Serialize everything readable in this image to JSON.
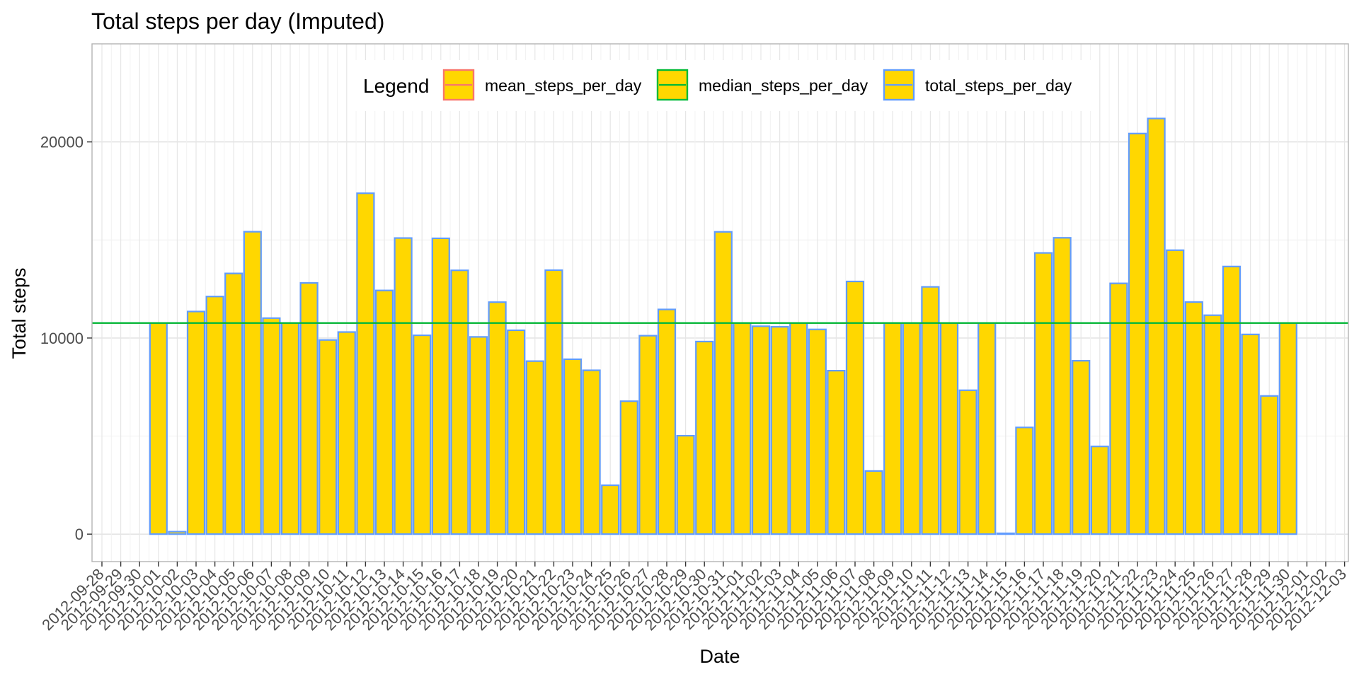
{
  "chart_data": {
    "type": "bar",
    "title": "Total steps per day (Imputed)",
    "xlabel": "Date",
    "ylabel": "Total steps",
    "ylim": [
      -1400,
      25000
    ],
    "y_ticks": [
      0,
      10000,
      20000
    ],
    "y_tick_labels": [
      "0",
      "10000",
      "20000"
    ],
    "x_tick_labels": [
      "2012-09-28",
      "2012-09-29",
      "2012-09-30",
      "2012-10-01",
      "2012-10-02",
      "2012-10-03",
      "2012-10-04",
      "2012-10-05",
      "2012-10-06",
      "2012-10-07",
      "2012-10-08",
      "2012-10-09",
      "2012-10-10",
      "2012-10-11",
      "2012-10-12",
      "2012-10-13",
      "2012-10-14",
      "2012-10-15",
      "2012-10-16",
      "2012-10-17",
      "2012-10-18",
      "2012-10-19",
      "2012-10-20",
      "2012-10-21",
      "2012-10-22",
      "2012-10-23",
      "2012-10-24",
      "2012-10-25",
      "2012-10-26",
      "2012-10-27",
      "2012-10-28",
      "2012-10-29",
      "2012-10-30",
      "2012-10-31",
      "2012-11-01",
      "2012-11-02",
      "2012-11-03",
      "2012-11-04",
      "2012-11-05",
      "2012-11-06",
      "2012-11-07",
      "2012-11-08",
      "2012-11-09",
      "2012-11-10",
      "2012-11-11",
      "2012-11-12",
      "2012-11-13",
      "2012-11-14",
      "2012-11-15",
      "2012-11-16",
      "2012-11-17",
      "2012-11-18",
      "2012-11-19",
      "2012-11-20",
      "2012-11-21",
      "2012-11-22",
      "2012-11-23",
      "2012-11-24",
      "2012-11-25",
      "2012-11-26",
      "2012-11-27",
      "2012-11-28",
      "2012-11-29",
      "2012-11-30",
      "2012-12-01",
      "2012-12-02",
      "2012-12-03"
    ],
    "grid": true,
    "legend": {
      "title": "Legend",
      "position": "top",
      "items": [
        {
          "label": "mean_steps_per_day",
          "color": "#F8766D"
        },
        {
          "label": "median_steps_per_day",
          "color": "#00BA38"
        },
        {
          "label": "total_steps_per_day",
          "color": "#619CFF"
        }
      ]
    },
    "bar_fill": "#FFD700",
    "bar_outline": "#619CFF",
    "median_line": {
      "value": 10766.19,
      "color": "#00BA38"
    },
    "mean_line": {
      "value": 10766.19,
      "color": "#F8766D"
    },
    "series": [
      {
        "name": "total_steps_per_day",
        "x": [
          "2012-10-01",
          "2012-10-02",
          "2012-10-03",
          "2012-10-04",
          "2012-10-05",
          "2012-10-06",
          "2012-10-07",
          "2012-10-08",
          "2012-10-09",
          "2012-10-10",
          "2012-10-11",
          "2012-10-12",
          "2012-10-13",
          "2012-10-14",
          "2012-10-15",
          "2012-10-16",
          "2012-10-17",
          "2012-10-18",
          "2012-10-19",
          "2012-10-20",
          "2012-10-21",
          "2012-10-22",
          "2012-10-23",
          "2012-10-24",
          "2012-10-25",
          "2012-10-26",
          "2012-10-27",
          "2012-10-28",
          "2012-10-29",
          "2012-10-30",
          "2012-10-31",
          "2012-11-01",
          "2012-11-02",
          "2012-11-03",
          "2012-11-04",
          "2012-11-05",
          "2012-11-06",
          "2012-11-07",
          "2012-11-08",
          "2012-11-09",
          "2012-11-10",
          "2012-11-11",
          "2012-11-12",
          "2012-11-13",
          "2012-11-14",
          "2012-11-15",
          "2012-11-16",
          "2012-11-17",
          "2012-11-18",
          "2012-11-19",
          "2012-11-20",
          "2012-11-21",
          "2012-11-22",
          "2012-11-23",
          "2012-11-24",
          "2012-11-25",
          "2012-11-26",
          "2012-11-27",
          "2012-11-28",
          "2012-11-29",
          "2012-11-30"
        ],
        "values": [
          10766,
          126,
          11352,
          12116,
          13294,
          15420,
          11015,
          10766,
          12811,
          9900,
          10304,
          17382,
          12426,
          15098,
          10139,
          15084,
          13452,
          10056,
          11829,
          10395,
          8821,
          13460,
          8918,
          8355,
          2492,
          6778,
          10119,
          11458,
          5018,
          9819,
          15414,
          10766,
          10600,
          10571,
          10766,
          10439,
          8334,
          12883,
          3219,
          10766,
          10766,
          12608,
          10765,
          7336,
          10766,
          41,
          5441,
          14339,
          15110,
          8841,
          4472,
          12787,
          20427,
          21194,
          14478,
          11834,
          11162,
          13646,
          10183,
          7047,
          10766
        ]
      }
    ]
  }
}
